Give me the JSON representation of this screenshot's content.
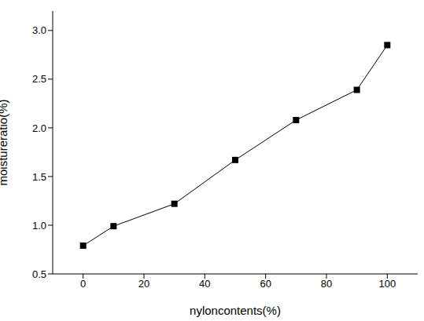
{
  "chart_data": {
    "type": "line",
    "x_label": "nyloncontents(%)",
    "y_label": "moistureratio(%)",
    "x": [
      0,
      10,
      30,
      50,
      70,
      90,
      100
    ],
    "values": [
      0.79,
      0.99,
      1.22,
      1.67,
      2.08,
      2.39,
      2.85
    ],
    "color": "#000000",
    "marker": "square",
    "line_style": "solid",
    "xlim": [
      -10,
      110
    ],
    "xticks": [
      0,
      20,
      40,
      60,
      80,
      100
    ],
    "ylim": [
      0.5,
      3.2
    ],
    "yticks": [
      0.5,
      {
        "value": 1,
        "label": "1.0"
      },
      1.5,
      {
        "value": 2,
        "label": "2.0"
      },
      2.5,
      {
        "value": 3,
        "label": "3.0"
      }
    ],
    "grid": false
  }
}
